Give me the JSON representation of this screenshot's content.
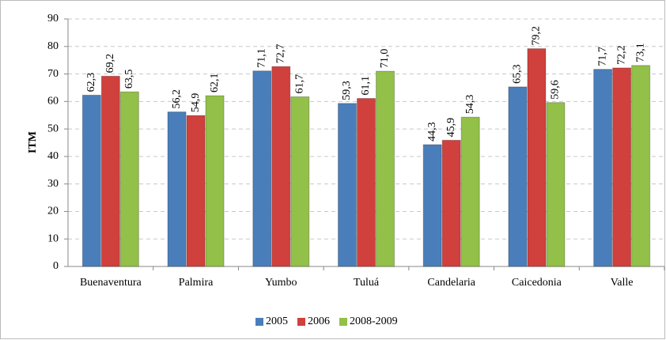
{
  "chart_data": {
    "type": "bar",
    "y_label": "ITM",
    "categories": [
      "Buenaventura",
      "Palmira",
      "Yumbo",
      "Tuluá",
      "Candelaria",
      "Caicedonia",
      "Valle"
    ],
    "series": [
      {
        "name": "2005",
        "color": "#4a7ebb",
        "values": [
          62.3,
          56.2,
          71.1,
          59.3,
          44.3,
          65.3,
          71.7
        ],
        "value_labels": [
          "62,3",
          "56,2",
          "71,1",
          "59,3",
          "44,3",
          "65,3",
          "71,7"
        ]
      },
      {
        "name": "2006",
        "color": "#d0403c",
        "values": [
          69.2,
          54.9,
          72.7,
          61.1,
          45.9,
          79.2,
          72.2
        ],
        "value_labels": [
          "69,2",
          "54,9",
          "72,7",
          "61,1",
          "45,9",
          "79,2",
          "72,2"
        ]
      },
      {
        "name": "2008-2009",
        "color": "#92c048",
        "values": [
          63.5,
          62.1,
          61.7,
          71.0,
          54.3,
          59.6,
          73.1
        ],
        "value_labels": [
          "63,5",
          "62,1",
          "61,7",
          "71,0",
          "54,3",
          "59,6",
          "73,1"
        ]
      }
    ],
    "ylim": [
      0,
      90
    ],
    "yticks": [
      0,
      10,
      20,
      30,
      40,
      50,
      60,
      70,
      80,
      90
    ],
    "grid": true,
    "legend": "bottom"
  }
}
